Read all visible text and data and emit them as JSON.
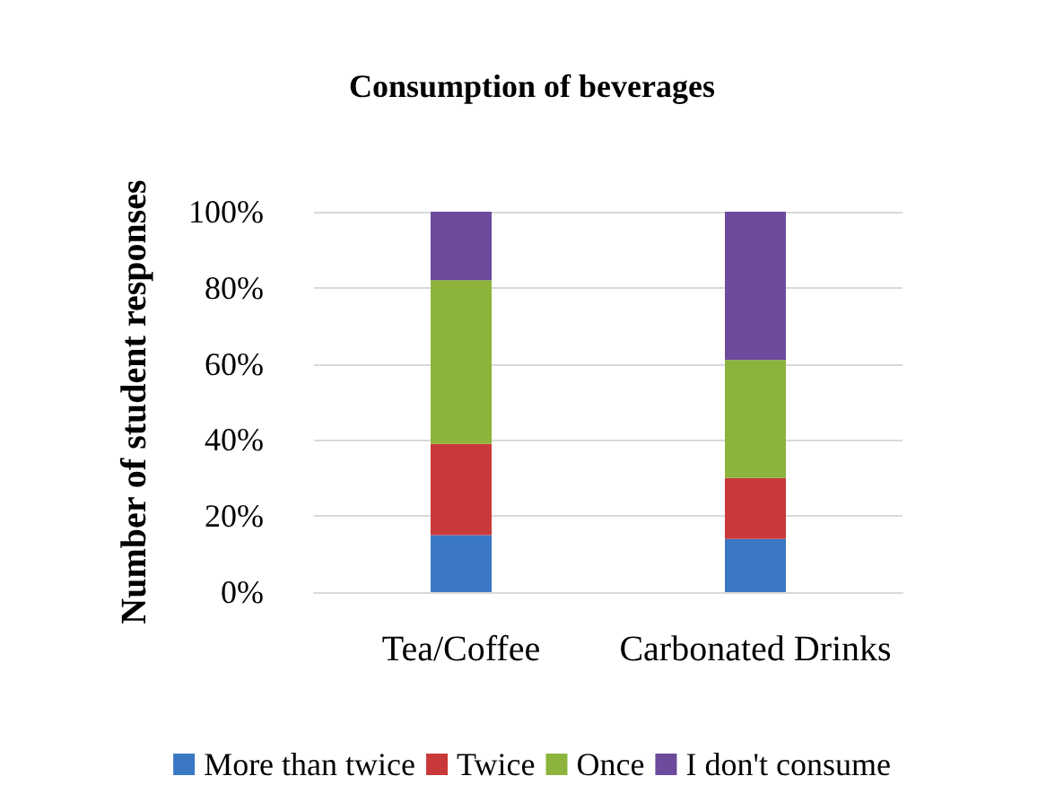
{
  "chart_data": {
    "type": "bar",
    "stacked": true,
    "title": "Consumption of beverages",
    "ylabel": "Number of student responses",
    "categories": [
      "Tea/Coffee",
      "Carbonated Drinks"
    ],
    "series": [
      {
        "name": "More than twice",
        "color": "#3a78c4",
        "values": [
          15,
          14
        ]
      },
      {
        "name": "Twice",
        "color": "#c9393a",
        "values": [
          24,
          16
        ]
      },
      {
        "name": "Once",
        "color": "#8cb43c",
        "values": [
          43,
          31
        ]
      },
      {
        "name": "I don't consume",
        "color": "#6c4a9c",
        "values": [
          18,
          39
        ]
      }
    ],
    "ylim": [
      0,
      100
    ],
    "yticks": [
      {
        "value": 0,
        "label": "0%"
      },
      {
        "value": 20,
        "label": "20%"
      },
      {
        "value": 40,
        "label": "40%"
      },
      {
        "value": 60,
        "label": "60%"
      },
      {
        "value": 80,
        "label": "80%"
      },
      {
        "value": 100,
        "label": "100%"
      }
    ],
    "grid": "y",
    "legend": "bottom"
  }
}
